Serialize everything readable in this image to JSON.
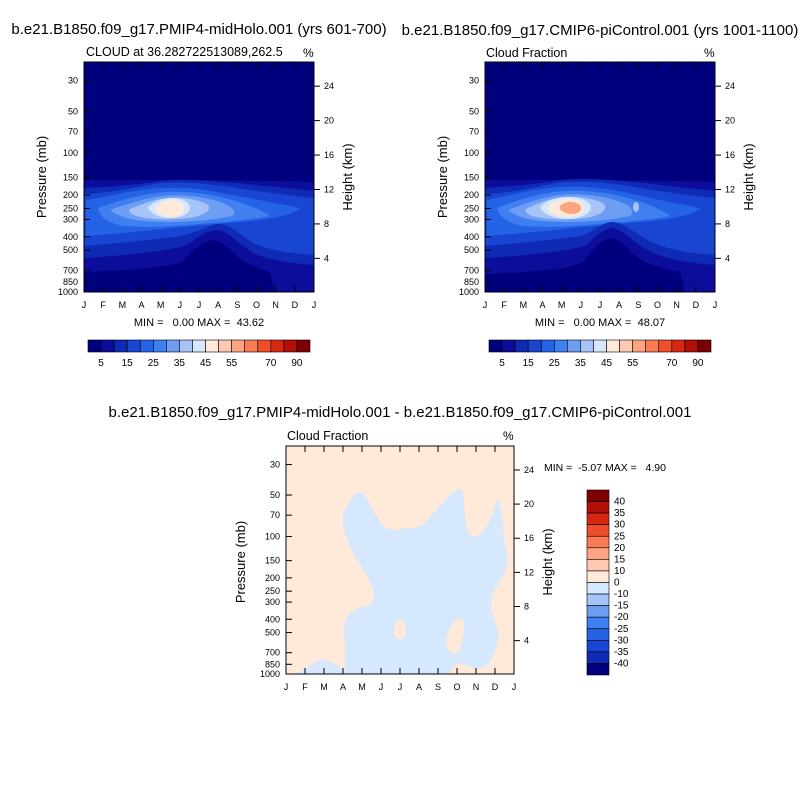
{
  "chart_data": [
    {
      "type": "contour",
      "case_title": "b.e21.B1850.f09_g17.PMIP4-midHolo.001 (yrs 601-700)",
      "left_label": "CLOUD at 36.282722513089,262.5",
      "right_label": "%",
      "ylabel": "Pressure (mb)",
      "ylabel_right": "Height (km)",
      "x_ticks": [
        "J",
        "F",
        "M",
        "A",
        "M",
        "J",
        "J",
        "A",
        "S",
        "O",
        "N",
        "D",
        "J"
      ],
      "pressure_ticks": [
        "30",
        "50",
        "70",
        "100",
        "150",
        "200",
        "250",
        "300",
        "400",
        "500",
        "700",
        "850",
        "1000"
      ],
      "height_ticks": [
        "24",
        "20",
        "16",
        "12",
        "8",
        "4"
      ],
      "stats": "MIN =   0.00 MAX =  43.62",
      "max_value": 43.62,
      "colorbar_labels": [
        "5",
        "15",
        "25",
        "35",
        "45",
        "55",
        "70",
        "90"
      ]
    },
    {
      "type": "contour",
      "case_title": "b.e21.B1850.f09_g17.CMIP6-piControl.001 (yrs 1001-1100)",
      "left_label": "Cloud Fraction",
      "right_label": "%",
      "ylabel": "Pressure (mb)",
      "ylabel_right": "Height (km)",
      "x_ticks": [
        "J",
        "F",
        "M",
        "A",
        "M",
        "J",
        "J",
        "A",
        "S",
        "O",
        "N",
        "D",
        "J"
      ],
      "pressure_ticks": [
        "30",
        "50",
        "70",
        "100",
        "150",
        "200",
        "250",
        "300",
        "400",
        "500",
        "700",
        "850",
        "1000"
      ],
      "height_ticks": [
        "24",
        "20",
        "16",
        "12",
        "8",
        "4"
      ],
      "stats": "MIN =   0.00 MAX =  48.07",
      "max_value": 48.07,
      "colorbar_labels": [
        "5",
        "15",
        "25",
        "35",
        "45",
        "55",
        "70",
        "90"
      ]
    },
    {
      "type": "contour",
      "case_title": "b.e21.B1850.f09_g17.PMIP4-midHolo.001 - b.e21.B1850.f09_g17.CMIP6-piControl.001",
      "left_label": "Cloud Fraction",
      "right_label": "%",
      "ylabel": "Pressure (mb)",
      "ylabel_right": "Height (km)",
      "x_ticks": [
        "J",
        "F",
        "M",
        "A",
        "M",
        "J",
        "J",
        "A",
        "S",
        "O",
        "N",
        "D",
        "J"
      ],
      "pressure_ticks": [
        "30",
        "50",
        "70",
        "100",
        "150",
        "200",
        "250",
        "300",
        "400",
        "500",
        "700",
        "850",
        "1000"
      ],
      "height_ticks": [
        "24",
        "20",
        "16",
        "12",
        "8",
        "4"
      ],
      "stats": "MIN =  -5.07 MAX =   4.90",
      "colorbar_labels": [
        "40",
        "35",
        "30",
        "25",
        "20",
        "15",
        "10",
        "0",
        "-10",
        "-15",
        "-20",
        "-25",
        "-30",
        "-35",
        "-40"
      ]
    }
  ],
  "colors": {
    "seq": [
      "#00007f",
      "#0d0d9c",
      "#0f2ab5",
      "#1846d2",
      "#2463e6",
      "#3f7ff0",
      "#6e9ef4",
      "#a7c4f9",
      "#d6e8fd",
      "#ffe9d9",
      "#fec9b0",
      "#fca382",
      "#f87b54",
      "#ef4e2b",
      "#d72813",
      "#b20f08",
      "#7e0000"
    ],
    "diff": [
      "#7e0000",
      "#b20f08",
      "#d72813",
      "#ef4e2b",
      "#f87b54",
      "#fca382",
      "#fec9b0",
      "#ffe9d9",
      "#d6e8fd",
      "#a7c4f9",
      "#6e9ef4",
      "#3f7ff0",
      "#2463e6",
      "#1846d2",
      "#0f2ab5",
      "#00007f"
    ]
  }
}
